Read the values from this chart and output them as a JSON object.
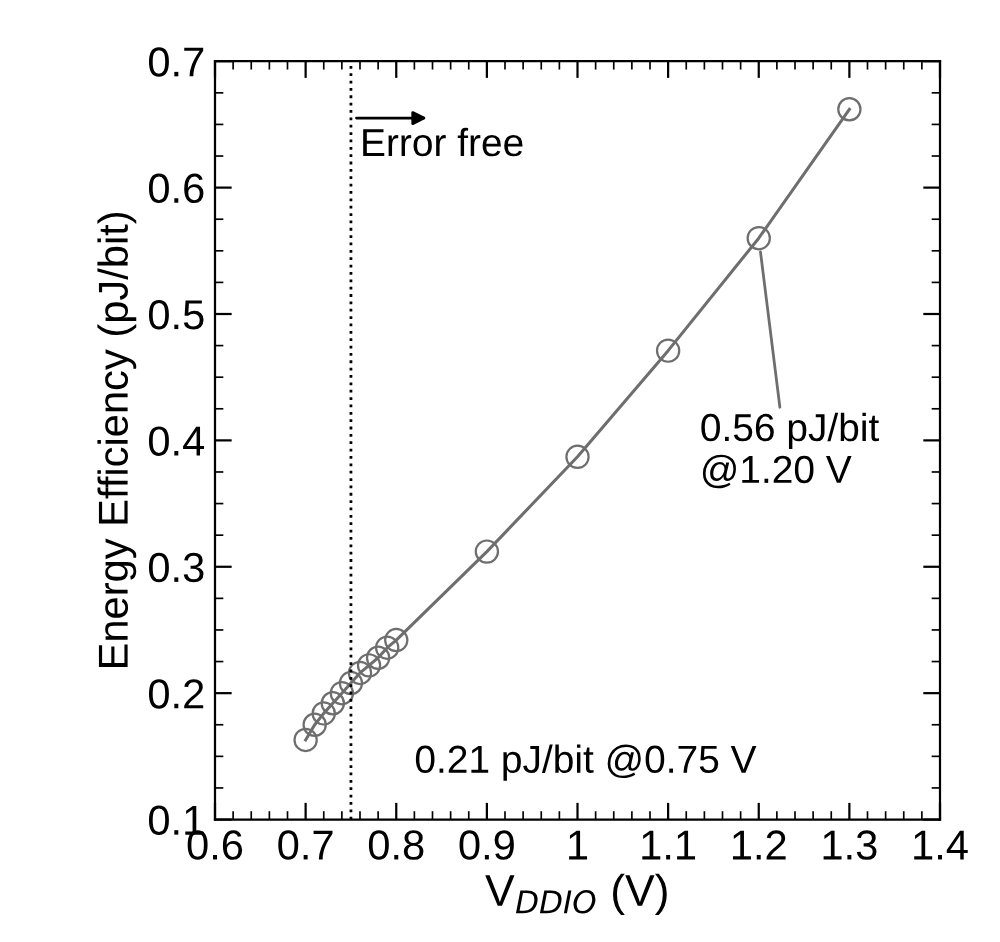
{
  "chart_data": {
    "type": "line",
    "xlabel": "V$_{DDIO}$ (V)",
    "ylabel": "Energy Efficiency (pJ/bit)",
    "x": [
      0.7,
      0.71,
      0.72,
      0.73,
      0.74,
      0.75,
      0.76,
      0.77,
      0.78,
      0.79,
      0.8,
      0.9,
      1.0,
      1.1,
      1.2,
      1.3
    ],
    "series": [
      {
        "color": "#6e6e6e",
        "values": [
          0.163,
          0.175,
          0.184,
          0.192,
          0.2,
          0.208,
          0.216,
          0.222,
          0.228,
          0.236,
          0.242,
          0.312,
          0.387,
          0.471,
          0.56,
          0.662
        ]
      }
    ],
    "marker": "circle",
    "line_style": "solid",
    "xlim": [
      0.6,
      1.4
    ],
    "xticks": [
      0.6,
      0.7,
      0.8,
      0.9,
      1,
      1.1,
      1.2,
      1.3,
      1.4
    ],
    "ylim": [
      0.1,
      0.7
    ],
    "yticks": [
      0.1,
      0.2,
      0.3,
      0.4,
      0.5,
      0.6,
      0.7
    ],
    "grid": false,
    "legend": false,
    "ref_lines": [
      {
        "axis": "x",
        "value": 0.75,
        "line_style": "dotted",
        "color": "#000000"
      }
    ],
    "annotations": [
      "Error free",
      {
        "text": "0.56 pJ/bit\n@1.20 V",
        "x": 1.2,
        "y": 0.56
      },
      {
        "text": "0.21 pJ/bit @0.75 V",
        "x": 0.75,
        "y": 0.208
      }
    ]
  }
}
